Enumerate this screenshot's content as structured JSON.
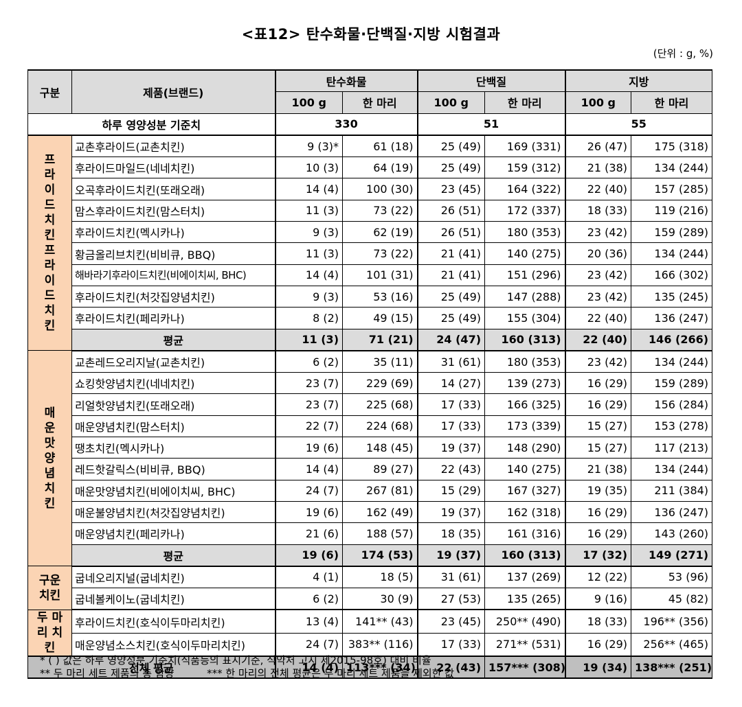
{
  "title": "<표12> 탄수화물·단백질·지방 시험결과",
  "unit": "(단위 : g, %)",
  "header": {
    "category": "구분",
    "product": "제품(브랜드)",
    "carb": "탄수화물",
    "protein": "단백질",
    "fat": "지방",
    "per100": "100 g",
    "whole": "한 마리"
  },
  "reference": {
    "label": "하루 영양성분 기준치",
    "carb": "330",
    "protein": "51",
    "fat": "55"
  },
  "groups": [
    {
      "category": "프라이드치킨프라이드치킨",
      "rows": [
        {
          "name": "교촌후라이드(교촌치킨)",
          "c100": "9 (3)*",
          "cw": "61 (18)",
          "p100": "25 (49)",
          "pw": "169 (331)",
          "f100": "26 (47)",
          "fw": "175 (318)"
        },
        {
          "name": "후라이드마일드(네네치킨)",
          "c100": "10 (3)",
          "cw": "64 (19)",
          "p100": "25 (49)",
          "pw": "159 (312)",
          "f100": "21 (38)",
          "fw": "134 (244)"
        },
        {
          "name": "오곡후라이드치킨(또래오래)",
          "c100": "14 (4)",
          "cw": "100 (30)",
          "p100": "23 (45)",
          "pw": "164 (322)",
          "f100": "22 (40)",
          "fw": "157 (285)"
        },
        {
          "name": "맘스후라이드치킨(맘스터치)",
          "c100": "11 (3)",
          "cw": "73 (22)",
          "p100": "26 (51)",
          "pw": "172 (337)",
          "f100": "18 (33)",
          "fw": "119 (216)"
        },
        {
          "name": "후라이드치킨(멕시카나)",
          "c100": "9 (3)",
          "cw": "62 (19)",
          "p100": "26 (51)",
          "pw": "180 (353)",
          "f100": "23 (42)",
          "fw": "159 (289)"
        },
        {
          "name": "황금올리브치킨(비비큐, BBQ)",
          "c100": "11 (3)",
          "cw": "73 (22)",
          "p100": "21 (41)",
          "pw": "140 (275)",
          "f100": "20 (36)",
          "fw": "134 (244)"
        },
        {
          "name": "해바라기후라이드치킨(비에이치씨, BHC)",
          "c100": "14 (4)",
          "cw": "101 (31)",
          "p100": "21 (41)",
          "pw": "151 (296)",
          "f100": "23 (42)",
          "fw": "166 (302)",
          "wide": true
        },
        {
          "name": "후라이드치킨(처갓집양념치킨)",
          "c100": "9 (3)",
          "cw": "53 (16)",
          "p100": "25 (49)",
          "pw": "147 (288)",
          "f100": "23 (42)",
          "fw": "135 (245)"
        },
        {
          "name": "후라이드치킨(페리카나)",
          "c100": "8 (2)",
          "cw": "49 (15)",
          "p100": "25 (49)",
          "pw": "155 (304)",
          "f100": "22 (40)",
          "fw": "136 (247)"
        }
      ],
      "avg": {
        "label": "평균",
        "c100": "11 (3)",
        "cw": "71 (21)",
        "p100": "24 (47)",
        "pw": "160 (313)",
        "f100": "22 (40)",
        "fw": "146 (266)"
      }
    },
    {
      "category": "매운맛양념치킨",
      "rows": [
        {
          "name": "교촌레드오리지날(교촌치킨)",
          "c100": "6 (2)",
          "cw": "35 (11)",
          "p100": "31 (61)",
          "pw": "180 (353)",
          "f100": "23 (42)",
          "fw": "134 (244)"
        },
        {
          "name": "쇼킹핫양념치킨(네네치킨)",
          "c100": "23 (7)",
          "cw": "229 (69)",
          "p100": "14 (27)",
          "pw": "139 (273)",
          "f100": "16 (29)",
          "fw": "159 (289)"
        },
        {
          "name": "리얼핫양념치킨(또래오래)",
          "c100": "23 (7)",
          "cw": "225 (68)",
          "p100": "17 (33)",
          "pw": "166 (325)",
          "f100": "16 (29)",
          "fw": "156 (284)"
        },
        {
          "name": "매운양념치킨(맘스터치)",
          "c100": "22 (7)",
          "cw": "224 (68)",
          "p100": "17 (33)",
          "pw": "173 (339)",
          "f100": "15 (27)",
          "fw": "153 (278)"
        },
        {
          "name": "땡초치킨(멕시카나)",
          "c100": "19 (6)",
          "cw": "148 (45)",
          "p100": "19 (37)",
          "pw": "148 (290)",
          "f100": "15 (27)",
          "fw": "117 (213)"
        },
        {
          "name": "레드핫갈릭스(비비큐, BBQ)",
          "c100": "14 (4)",
          "cw": "89 (27)",
          "p100": "22 (43)",
          "pw": "140 (275)",
          "f100": "21 (38)",
          "fw": "134 (244)"
        },
        {
          "name": "매운맛양념치킨(비에이치씨, BHC)",
          "c100": "24 (7)",
          "cw": "267 (81)",
          "p100": "15 (29)",
          "pw": "167 (327)",
          "f100": "19 (35)",
          "fw": "211 (384)"
        },
        {
          "name": "매운불양념치킨(처갓집양념치킨)",
          "c100": "19 (6)",
          "cw": "162 (49)",
          "p100": "19 (37)",
          "pw": "162 (318)",
          "f100": "16 (29)",
          "fw": "136 (247)"
        },
        {
          "name": "매운양념치킨(페리카나)",
          "c100": "21 (6)",
          "cw": "188 (57)",
          "p100": "18 (35)",
          "pw": "161 (316)",
          "f100": "16 (29)",
          "fw": "143 (260)"
        }
      ],
      "avg": {
        "label": "평균",
        "c100": "19 (6)",
        "cw": "174 (53)",
        "p100": "19 (37)",
        "pw": "160 (313)",
        "f100": "17 (32)",
        "fw": "149 (271)"
      }
    },
    {
      "category": "구운치킨",
      "rows": [
        {
          "name": "굽네오리지널(굽네치킨)",
          "c100": "4 (1)",
          "cw": "18 (5)",
          "p100": "31 (61)",
          "pw": "137 (269)",
          "f100": "12 (22)",
          "fw": "53 (96)"
        },
        {
          "name": "굽네볼케이노(굽네치킨)",
          "c100": "6 (2)",
          "cw": "30 (9)",
          "p100": "27 (53)",
          "pw": "135 (265)",
          "f100": "9 (16)",
          "fw": "45 (82)"
        }
      ]
    },
    {
      "category": "두 마리 치킨",
      "rows": [
        {
          "name": "후라이드치킨(호식이두마리치킨)",
          "c100": "13 (4)",
          "cw": "141** (43)",
          "p100": "23 (45)",
          "pw": "250** (490)",
          "f100": "18 (33)",
          "fw": "196** (356)"
        },
        {
          "name": "매운양념소스치킨(호식이두마리치킨)",
          "c100": "24 (7)",
          "cw": "383** (116)",
          "p100": "17 (33)",
          "pw": "271** (531)",
          "f100": "16 (29)",
          "fw": "256** (465)"
        }
      ]
    }
  ],
  "total": {
    "label": "전체 평균",
    "c100": "14 (4)",
    "cw": "113*** (34)",
    "p100": "22 (43)",
    "pw": "157*** (308)",
    "f100": "19 (34)",
    "fw": "138*** (251)"
  },
  "notes": [
    "* ( ) 값은 하루 영양성분 기준치(식품등의 표시기준, 식약처 고시 제2015-98호) 대비 비율",
    "** 두 마리 세트 제품의 총 함량          *** 한 마리의 전체 평균은 두 마리 세트 제품을 제외한 값"
  ]
}
